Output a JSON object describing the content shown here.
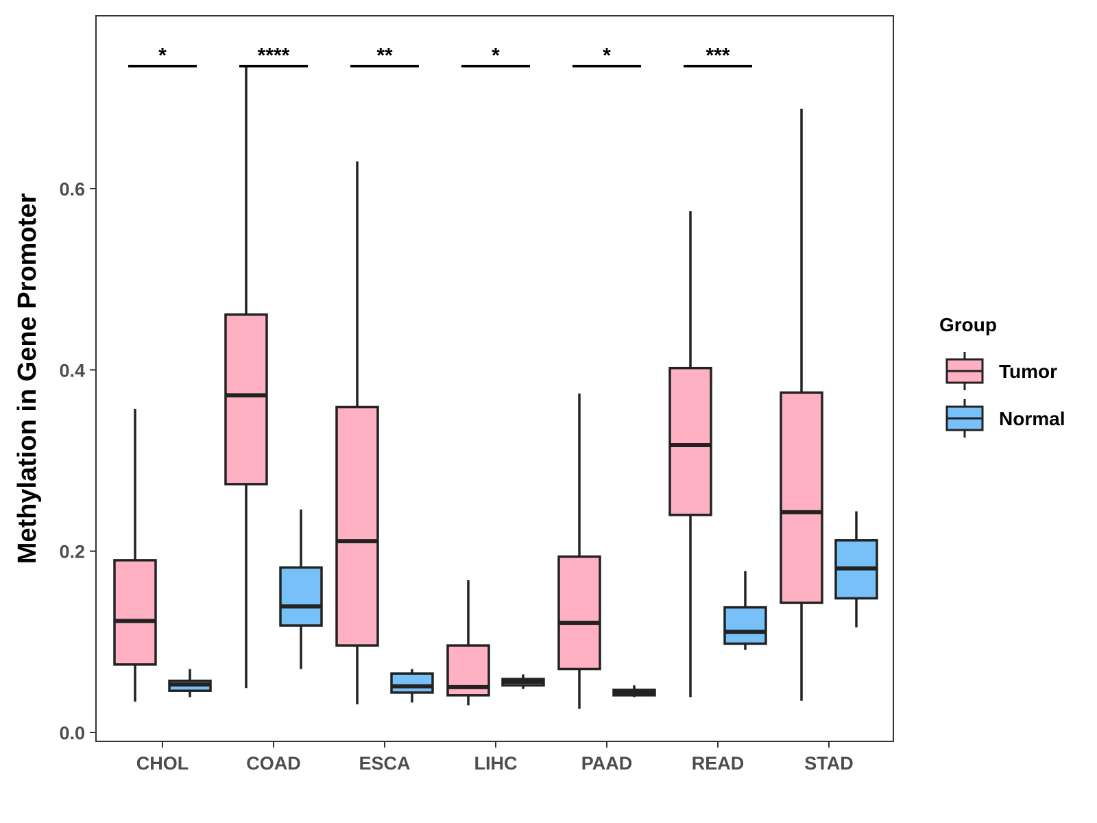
{
  "chart_data": {
    "type": "boxplot",
    "title": "",
    "xlabel": "",
    "ylabel": "Methylation in Gene Promoter",
    "ylim": [
      -0.01,
      0.79
    ],
    "yticks": [
      "0.0",
      "0.2",
      "0.4",
      "0.6"
    ],
    "ytick_values": [
      0.0,
      0.2,
      0.4,
      0.6
    ],
    "grid": false,
    "legend": {
      "title": "Group",
      "position": "right",
      "entries": [
        {
          "label": "Tumor",
          "color": "#FFB0C2"
        },
        {
          "label": "Normal",
          "color": "#78C0F8"
        }
      ]
    },
    "categories": [
      "CHOL",
      "COAD",
      "ESCA",
      "LIHC",
      "PAAD",
      "READ",
      "STAD"
    ],
    "series": [
      {
        "name": "Tumor",
        "color": "#FFB0C2",
        "boxes": [
          {
            "whisker_low": 0.034,
            "q1": 0.075,
            "median": 0.123,
            "q3": 0.19,
            "whisker_high": 0.357
          },
          {
            "whisker_low": 0.049,
            "q1": 0.274,
            "median": 0.372,
            "q3": 0.461,
            "whisker_high": 0.735
          },
          {
            "whisker_low": 0.031,
            "q1": 0.096,
            "median": 0.211,
            "q3": 0.359,
            "whisker_high": 0.63
          },
          {
            "whisker_low": 0.03,
            "q1": 0.041,
            "median": 0.05,
            "q3": 0.096,
            "whisker_high": 0.168
          },
          {
            "whisker_low": 0.026,
            "q1": 0.07,
            "median": 0.121,
            "q3": 0.194,
            "whisker_high": 0.374
          },
          {
            "whisker_low": 0.039,
            "q1": 0.24,
            "median": 0.317,
            "q3": 0.402,
            "whisker_high": 0.575
          },
          {
            "whisker_low": 0.035,
            "q1": 0.143,
            "median": 0.243,
            "q3": 0.375,
            "whisker_high": 0.688
          }
        ]
      },
      {
        "name": "Normal",
        "color": "#78C0F8",
        "boxes": [
          {
            "whisker_low": 0.039,
            "q1": 0.046,
            "median": 0.053,
            "q3": 0.057,
            "whisker_high": 0.07
          },
          {
            "whisker_low": 0.07,
            "q1": 0.118,
            "median": 0.139,
            "q3": 0.182,
            "whisker_high": 0.246
          },
          {
            "whisker_low": 0.033,
            "q1": 0.044,
            "median": 0.051,
            "q3": 0.065,
            "whisker_high": 0.07
          },
          {
            "whisker_low": 0.048,
            "q1": 0.052,
            "median": 0.056,
            "q3": 0.059,
            "whisker_high": 0.064
          },
          {
            "whisker_low": 0.039,
            "q1": 0.041,
            "median": 0.044,
            "q3": 0.047,
            "whisker_high": 0.052
          },
          {
            "whisker_low": 0.091,
            "q1": 0.098,
            "median": 0.111,
            "q3": 0.138,
            "whisker_high": 0.178
          },
          {
            "whisker_low": 0.116,
            "q1": 0.148,
            "median": 0.181,
            "q3": 0.212,
            "whisker_high": 0.244
          }
        ]
      }
    ],
    "annotations": [
      {
        "category": "CHOL",
        "label": "*",
        "y": 0.735
      },
      {
        "category": "COAD",
        "label": "****",
        "y": 0.735
      },
      {
        "category": "ESCA",
        "label": "**",
        "y": 0.735
      },
      {
        "category": "LIHC",
        "label": "*",
        "y": 0.735
      },
      {
        "category": "PAAD",
        "label": "*",
        "y": 0.735
      },
      {
        "category": "READ",
        "label": "***",
        "y": 0.735
      }
    ]
  }
}
